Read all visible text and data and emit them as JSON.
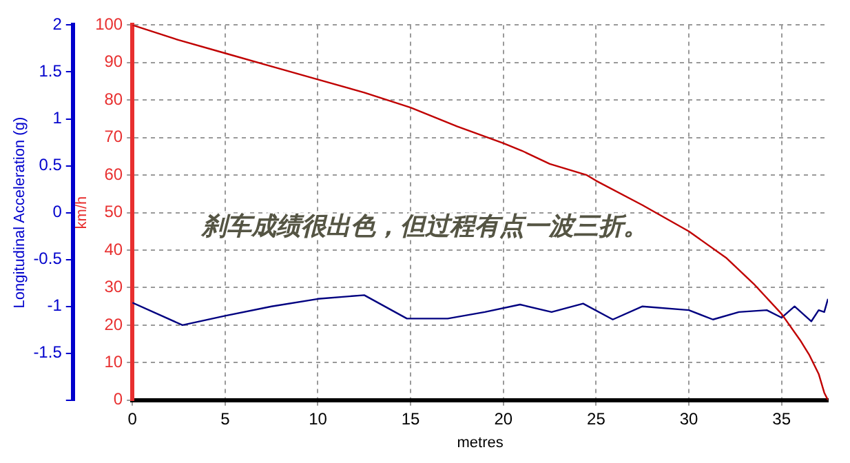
{
  "chart_data": {
    "type": "line",
    "xlabel": "metres",
    "ylabel": "km/h",
    "y2label": "Longitudinal Acceleration (g)",
    "annotations": [
      "刹车成绩很出色，但过程有点一波三折。"
    ],
    "xlim": [
      0,
      37.5
    ],
    "xticks": [
      0,
      5,
      10,
      15,
      20,
      25,
      30,
      35
    ],
    "ylim": [
      0,
      100
    ],
    "yticks": [
      0,
      10,
      20,
      30,
      40,
      50,
      60,
      70,
      80,
      90,
      100
    ],
    "y2lim": [
      -2,
      2
    ],
    "y2ticks": [
      {
        "value": -2,
        "label": null
      },
      -1.5,
      -1,
      -0.5,
      0,
      0.5,
      1,
      1.5,
      2
    ],
    "grid": true,
    "marker": "none",
    "line_style": "solid",
    "series": [
      {
        "color": "#c00000",
        "x": [
          0,
          2.5,
          5,
          7.5,
          10,
          12.5,
          15,
          17.5,
          20,
          21,
          22.5,
          24.5,
          25,
          27.5,
          30,
          32,
          33.5,
          35,
          36,
          36.5,
          37,
          37.3,
          37.5
        ],
        "values": [
          100,
          96,
          92.5,
          89,
          85.5,
          82,
          78,
          73,
          68.5,
          66.5,
          63,
          60,
          58.5,
          52,
          45,
          38,
          31,
          23,
          16,
          12,
          7,
          2,
          0
        ]
      },
      {
        "color": "#000080",
        "axis": "y2",
        "x": [
          0,
          2.7,
          5,
          7.5,
          10,
          12.5,
          14.8,
          17,
          19,
          20.9,
          22.6,
          24.3,
          25.9,
          27.5,
          30,
          31.3,
          32.7,
          34.2,
          35,
          35.7,
          36.6,
          37,
          37.3,
          37.5
        ],
        "values": [
          -0.96,
          -1.2,
          -1.1,
          -1.0,
          -0.92,
          -0.88,
          -1.13,
          -1.13,
          -1.06,
          -0.98,
          -1.06,
          -0.97,
          -1.14,
          -1.0,
          -1.04,
          -1.14,
          -1.06,
          -1.04,
          -1.12,
          -1.0,
          -1.16,
          -1.04,
          -1.06,
          -0.92
        ]
      }
    ]
  }
}
